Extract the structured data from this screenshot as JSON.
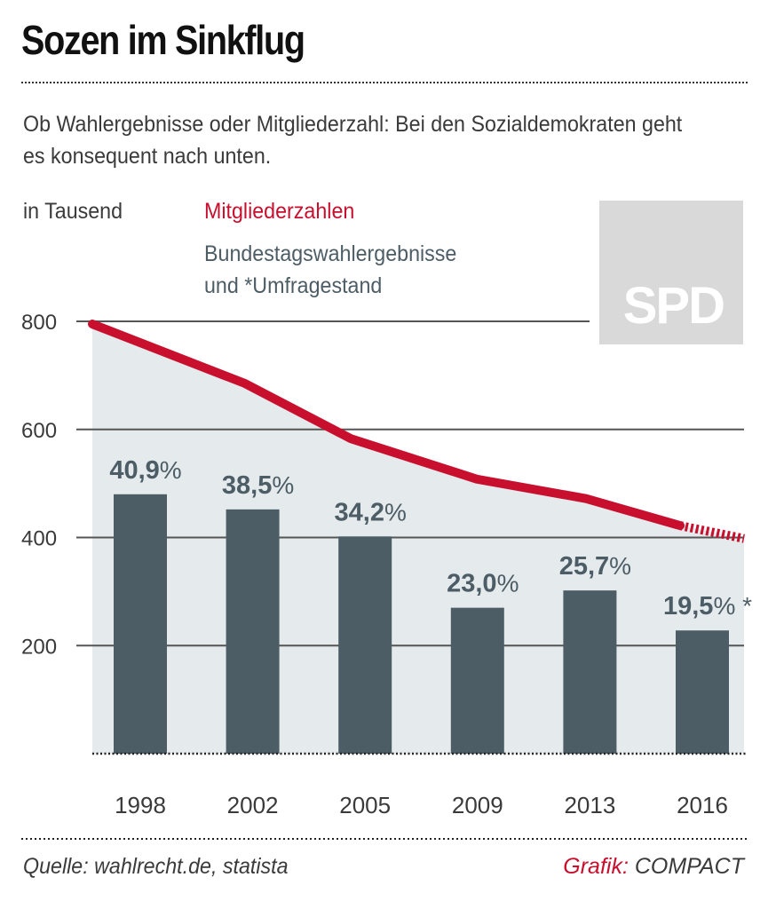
{
  "header": {
    "title": "Sozen im Sinkflug",
    "subtitle": "Ob Wahlergebnisse oder Mitgliederzahl: Bei den Sozialdemokraten geht es konsequent nach unten."
  },
  "legend": {
    "unit": "in Tausend",
    "members": "Mitgliederzahlen",
    "votes": "Bundestagswahlergebnisse\nund *Umfragestand"
  },
  "logo": {
    "text": "SPD"
  },
  "footer": {
    "source": "Quelle: wahlrecht.de, statista",
    "credit_label": "Grafik:",
    "credit_name": "COMPACT"
  },
  "colors": {
    "member_line": "#c8102e",
    "bars": "#4d5d66",
    "area": "#e5eaed",
    "grid": "#555555"
  },
  "chart_data": {
    "type": "bar",
    "categories": [
      "1998",
      "2002",
      "2005",
      "2009",
      "2013",
      "2016"
    ],
    "ylim": [
      0,
      800
    ],
    "yticks": [
      200,
      400,
      600,
      800
    ],
    "grid": true,
    "series": [
      {
        "name": "Bundestagswahlergebnisse und *Umfragestand",
        "type": "bar",
        "values": [
          480,
          452,
          402,
          270,
          302,
          228
        ],
        "labels": [
          "40,9",
          "38,5",
          "34,2",
          "23,0",
          "25,7",
          "19,5"
        ],
        "label_suffix": "%",
        "label_notes": [
          "",
          "",
          "",
          "",
          "",
          "*"
        ]
      },
      {
        "name": "Mitgliederzahlen",
        "type": "line",
        "x": [
          1998,
          2002,
          2005,
          2009,
          2013,
          2016,
          2017.3
        ],
        "values": [
          795,
          685,
          583,
          508,
          472,
          422,
          398
        ],
        "dashed_from": 2016
      }
    ]
  }
}
